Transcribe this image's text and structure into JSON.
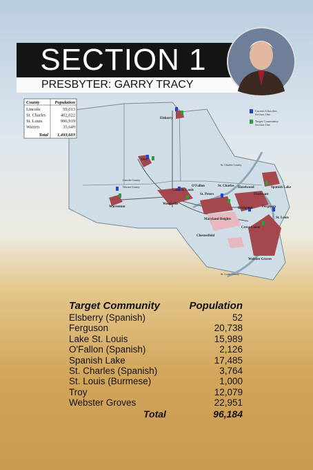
{
  "header": {
    "title": "SECTION 1",
    "subtitle": "PRESBYTER: GARRY TRACY"
  },
  "county_table": {
    "columns": [
      "County",
      "Population"
    ],
    "rows": [
      [
        "Lincoln",
        "59,013"
      ],
      [
        "St. Charles",
        "402,022"
      ],
      [
        "St. Louis",
        "996,919"
      ],
      [
        "Warren",
        "35,649"
      ]
    ],
    "total": [
      "Total",
      "1,493,603"
    ]
  },
  "map": {
    "legend": [
      "Current Churches",
      "Section One",
      "Target Community",
      "Section One"
    ],
    "labels": [
      "Elsberry",
      "Troy",
      "Lincoln County",
      "Warren County",
      "Warrenton",
      "Wentzville",
      "Lake St. Louis",
      "O'Fallon",
      "St. Peters",
      "St. Charles",
      "St. Charles County",
      "Hazelwood",
      "Florissant",
      "Spanish Lake",
      "Ferguson",
      "St. Louis",
      "Bridgeton",
      "Maryland Heights",
      "Creve Coeur",
      "Chesterfield",
      "Webster Groves",
      "St. Louis County"
    ]
  },
  "target_table": {
    "columns": [
      "Target Community",
      "Population"
    ],
    "rows": [
      [
        "Elsberry (Spanish)",
        "52"
      ],
      [
        "Ferguson",
        "20,738"
      ],
      [
        "Lake St. Louis",
        "15,989"
      ],
      [
        "O'Fallon (Spanish)",
        "2,126"
      ],
      [
        "Spanish Lake",
        "17,485"
      ],
      [
        "St. Charles (Spanish)",
        "3,764"
      ],
      [
        "St. Louis (Burmese)",
        "1,000"
      ],
      [
        "Troy",
        "12,079"
      ],
      [
        "Webster Groves",
        "22,951"
      ]
    ],
    "total": [
      "Total",
      "96,184"
    ]
  }
}
